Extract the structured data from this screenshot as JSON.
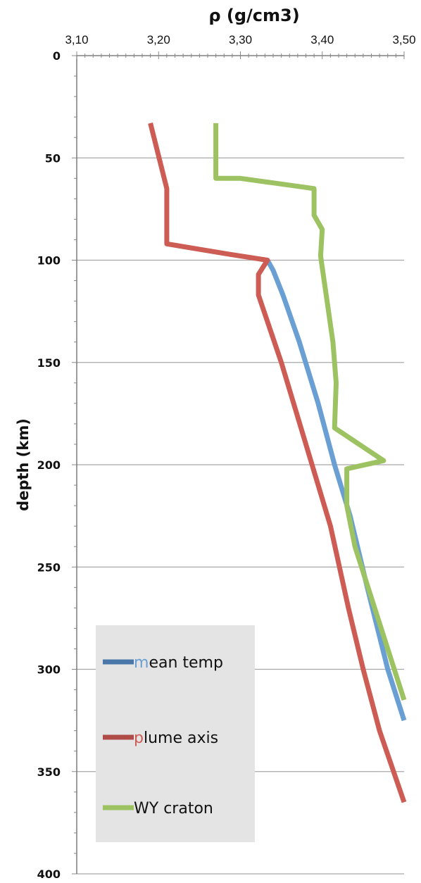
{
  "chart_data": {
    "type": "line",
    "title": "",
    "xlabel": "ρ (g/cm3)",
    "ylabel": "depth (km)",
    "xlim": [
      3.1,
      3.5
    ],
    "ylim": [
      0,
      400
    ],
    "y_inverted": true,
    "x_axis_position": "top",
    "x_ticks": [
      3.1,
      3.2,
      3.3,
      3.4,
      3.5
    ],
    "x_tick_labels": [
      "3,10",
      "3,20",
      "3,30",
      "3,40",
      "3,50"
    ],
    "y_ticks": [
      0,
      50,
      100,
      150,
      200,
      250,
      300,
      350,
      400
    ],
    "y_tick_labels": [
      "0",
      "50",
      "100",
      "150",
      "200",
      "250",
      "300",
      "350",
      "400"
    ],
    "grid": "horizontal",
    "legend_position": "bottom-left",
    "series": [
      {
        "name": "mean temp",
        "color": "#6a9fd4",
        "x": [
          3.333,
          3.34,
          3.352,
          3.372,
          3.395,
          3.415,
          3.434,
          3.455,
          3.48,
          3.5
        ],
        "y": [
          100,
          105,
          117,
          140,
          170,
          200,
          225,
          260,
          300,
          325
        ]
      },
      {
        "name": "plume axis",
        "color": "#cd5c55",
        "x": [
          3.19,
          3.21,
          3.21,
          3.285,
          3.333,
          3.322,
          3.322,
          3.35,
          3.38,
          3.41,
          3.432,
          3.45,
          3.47,
          3.5
        ],
        "y": [
          33,
          65,
          92,
          97,
          100,
          107,
          117,
          150,
          190,
          230,
          270,
          300,
          330,
          365
        ]
      },
      {
        "name": "WY craton",
        "color": "#9dc262",
        "x": [
          3.27,
          3.27,
          3.3,
          3.39,
          3.39,
          3.4,
          3.398,
          3.413,
          3.417,
          3.415,
          3.475,
          3.43,
          3.43,
          3.44,
          3.5
        ],
        "y": [
          33,
          60,
          60,
          65,
          78,
          85,
          98,
          140,
          160,
          182,
          198,
          202,
          220,
          240,
          315
        ]
      }
    ],
    "legend_entries": [
      {
        "label": "mean temp",
        "first_letter": "m",
        "rest": "ean temp",
        "line_color": "#4a77aa",
        "letter_color": "#6a9fd4"
      },
      {
        "label": "plume axis",
        "first_letter": "p",
        "rest": "lume axis",
        "line_color": "#b04c48",
        "letter_color": "#cd5c55"
      },
      {
        "label": "WY craton",
        "first_letter": "W",
        "rest": "Y craton",
        "line_color": "#9dc262",
        "letter_color": "#111111"
      }
    ]
  }
}
